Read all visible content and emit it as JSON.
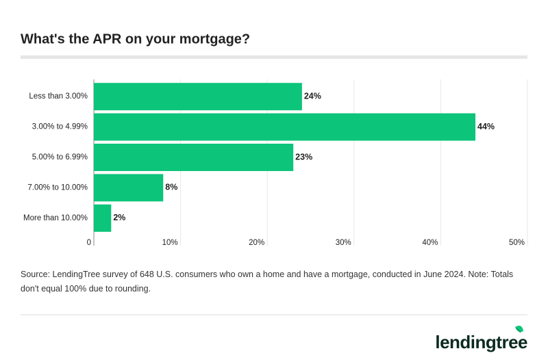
{
  "chart_data": {
    "type": "bar",
    "orientation": "horizontal",
    "title": "What's the APR on your mortgage?",
    "categories": [
      "Less than 3.00%",
      "3.00% to 4.99%",
      "5.00% to 6.99%",
      "7.00% to 10.00%",
      "More than 10.00%"
    ],
    "values": [
      24,
      44,
      23,
      8,
      2
    ],
    "value_labels": [
      "24%",
      "44%",
      "23%",
      "8%",
      "2%"
    ],
    "color": "#0cc47a",
    "xlim": [
      0,
      50
    ],
    "xticks": [
      0,
      {
        "value": 10,
        "label": "10%"
      },
      {
        "value": 20,
        "label": "20%"
      },
      {
        "value": 30,
        "label": "30%"
      },
      {
        "value": 40,
        "label": "40%"
      },
      {
        "value": 50,
        "label": "50%"
      }
    ],
    "grid": true
  },
  "footer": {
    "source": "Source: LendingTree survey of 648 U.S. consumers who own a home and have a mortgage, conducted in June 2024. Note: Totals don't equal 100% due to rounding.",
    "logo": "lendingtree"
  }
}
